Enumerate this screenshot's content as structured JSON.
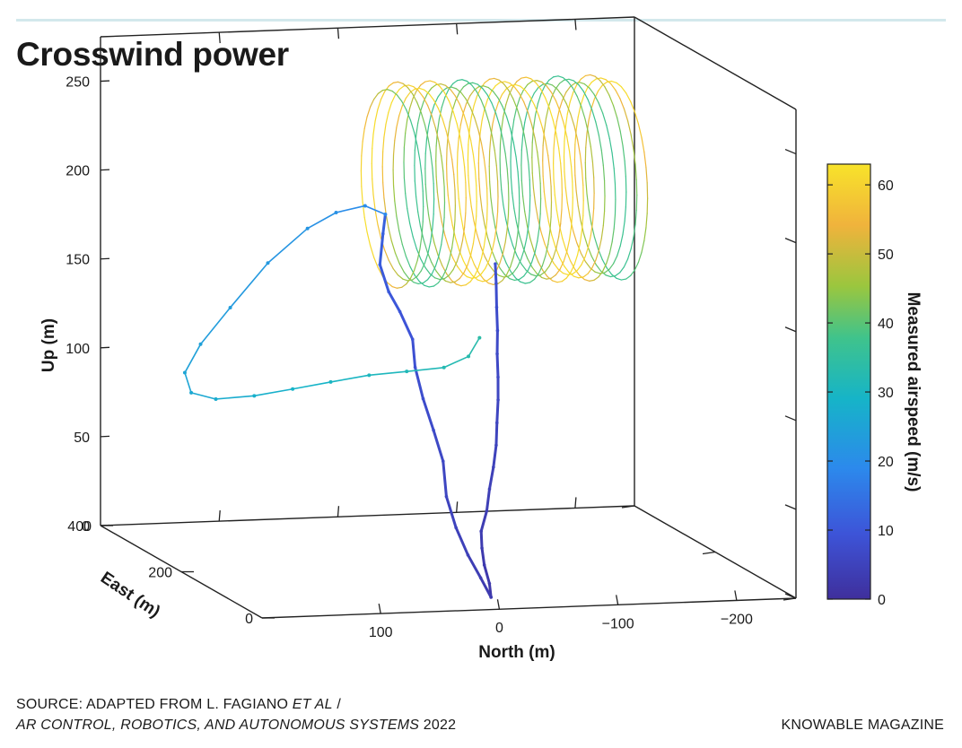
{
  "title": "Crosswind power",
  "footer": {
    "source_line1_prefix": "SOURCE: ADAPTED FROM L. FAGIANO ",
    "source_line1_italic": "ET AL",
    "source_line1_suffix": " /",
    "source_line2_italic": "AR CONTROL, ROBOTICS, AND AUTONOMOUS SYSTEMS",
    "source_line2_suffix": " 2022",
    "brand": "KNOWABLE MAGAZINE"
  },
  "chart_data": {
    "type": "scatter",
    "subtype": "3d-trajectory",
    "axes": {
      "north": {
        "label": "North (m)",
        "ticks": [
          "100",
          "0",
          "−100",
          "−200"
        ],
        "values": [
          100,
          0,
          -100,
          -200
        ],
        "lim": [
          200,
          -250
        ]
      },
      "east": {
        "label": "East (m)",
        "ticks": [
          "400",
          "200",
          "0"
        ],
        "values": [
          400,
          200,
          0
        ],
        "lim": [
          0,
          400
        ]
      },
      "up": {
        "label": "Up (m)",
        "ticks": [
          "0",
          "50",
          "100",
          "150",
          "200",
          "250"
        ],
        "values": [
          0,
          50,
          100,
          150,
          200,
          250
        ],
        "lim": [
          0,
          275
        ]
      }
    },
    "colorbar": {
      "label": "Measured airspeed (m/s)",
      "ticks": [
        "0",
        "10",
        "20",
        "30",
        "40",
        "50",
        "60"
      ],
      "values": [
        0,
        10,
        20,
        30,
        40,
        50,
        60
      ],
      "range": [
        0,
        63
      ],
      "colors": [
        "#3f2f9c",
        "#3d54d8",
        "#2c89ec",
        "#16b4c8",
        "#3fc38c",
        "#9bc63e",
        "#f0b33c",
        "#f8e32a"
      ]
    },
    "grid": false,
    "series": [
      {
        "segment": "takeoff-climb",
        "airspeed_range": [
          2,
          8
        ],
        "points": [
          [
            -10,
            50,
            0
          ],
          [
            -8,
            48,
            8
          ],
          [
            -5,
            52,
            18
          ],
          [
            -2,
            49,
            28
          ],
          [
            0,
            45,
            38
          ],
          [
            -3,
            40,
            50
          ],
          [
            -6,
            42,
            62
          ],
          [
            -10,
            44,
            74
          ],
          [
            -13,
            46,
            86
          ],
          [
            -15,
            50,
            98
          ],
          [
            -18,
            56,
            110
          ],
          [
            -20,
            62,
            122
          ],
          [
            -22,
            70,
            134
          ],
          [
            -25,
            78,
            146
          ],
          [
            -27,
            86,
            158
          ],
          [
            -30,
            96,
            170
          ],
          [
            -32,
            104,
            180
          ]
        ]
      },
      {
        "segment": "climb-second-branch",
        "airspeed_range": [
          3,
          12
        ],
        "points": [
          [
            -10,
            50,
            0
          ],
          [
            -4,
            58,
            10
          ],
          [
            4,
            66,
            22
          ],
          [
            10,
            78,
            36
          ],
          [
            14,
            90,
            52
          ],
          [
            12,
            104,
            70
          ],
          [
            16,
            116,
            86
          ],
          [
            20,
            130,
            102
          ],
          [
            22,
            144,
            118
          ],
          [
            20,
            156,
            132
          ],
          [
            26,
            170,
            146
          ],
          [
            32,
            180,
            156
          ],
          [
            36,
            190,
            170
          ],
          [
            30,
            200,
            186
          ],
          [
            26,
            206,
            196
          ]
        ]
      },
      {
        "segment": "transition-loop",
        "airspeed_range": [
          18,
          32
        ],
        "points": [
          [
            26,
            206,
            196
          ],
          [
            40,
            215,
            200
          ],
          [
            60,
            228,
            195
          ],
          [
            80,
            240,
            185
          ],
          [
            110,
            250,
            165
          ],
          [
            140,
            255,
            140
          ],
          [
            165,
            255,
            120
          ],
          [
            180,
            250,
            105
          ],
          [
            178,
            240,
            95
          ],
          [
            160,
            232,
            92
          ],
          [
            130,
            225,
            94
          ],
          [
            100,
            218,
            98
          ],
          [
            70,
            212,
            102
          ],
          [
            40,
            205,
            106
          ],
          [
            10,
            200,
            108
          ],
          [
            -20,
            196,
            110
          ],
          [
            -40,
            194,
            116
          ],
          [
            -50,
            196,
            126
          ]
        ]
      },
      {
        "segment": "figure-eight-orbits",
        "airspeed_range": [
          35,
          62
        ],
        "center": [
          -95,
          280,
          200
        ],
        "radius": 55,
        "loops": 22
      }
    ]
  }
}
